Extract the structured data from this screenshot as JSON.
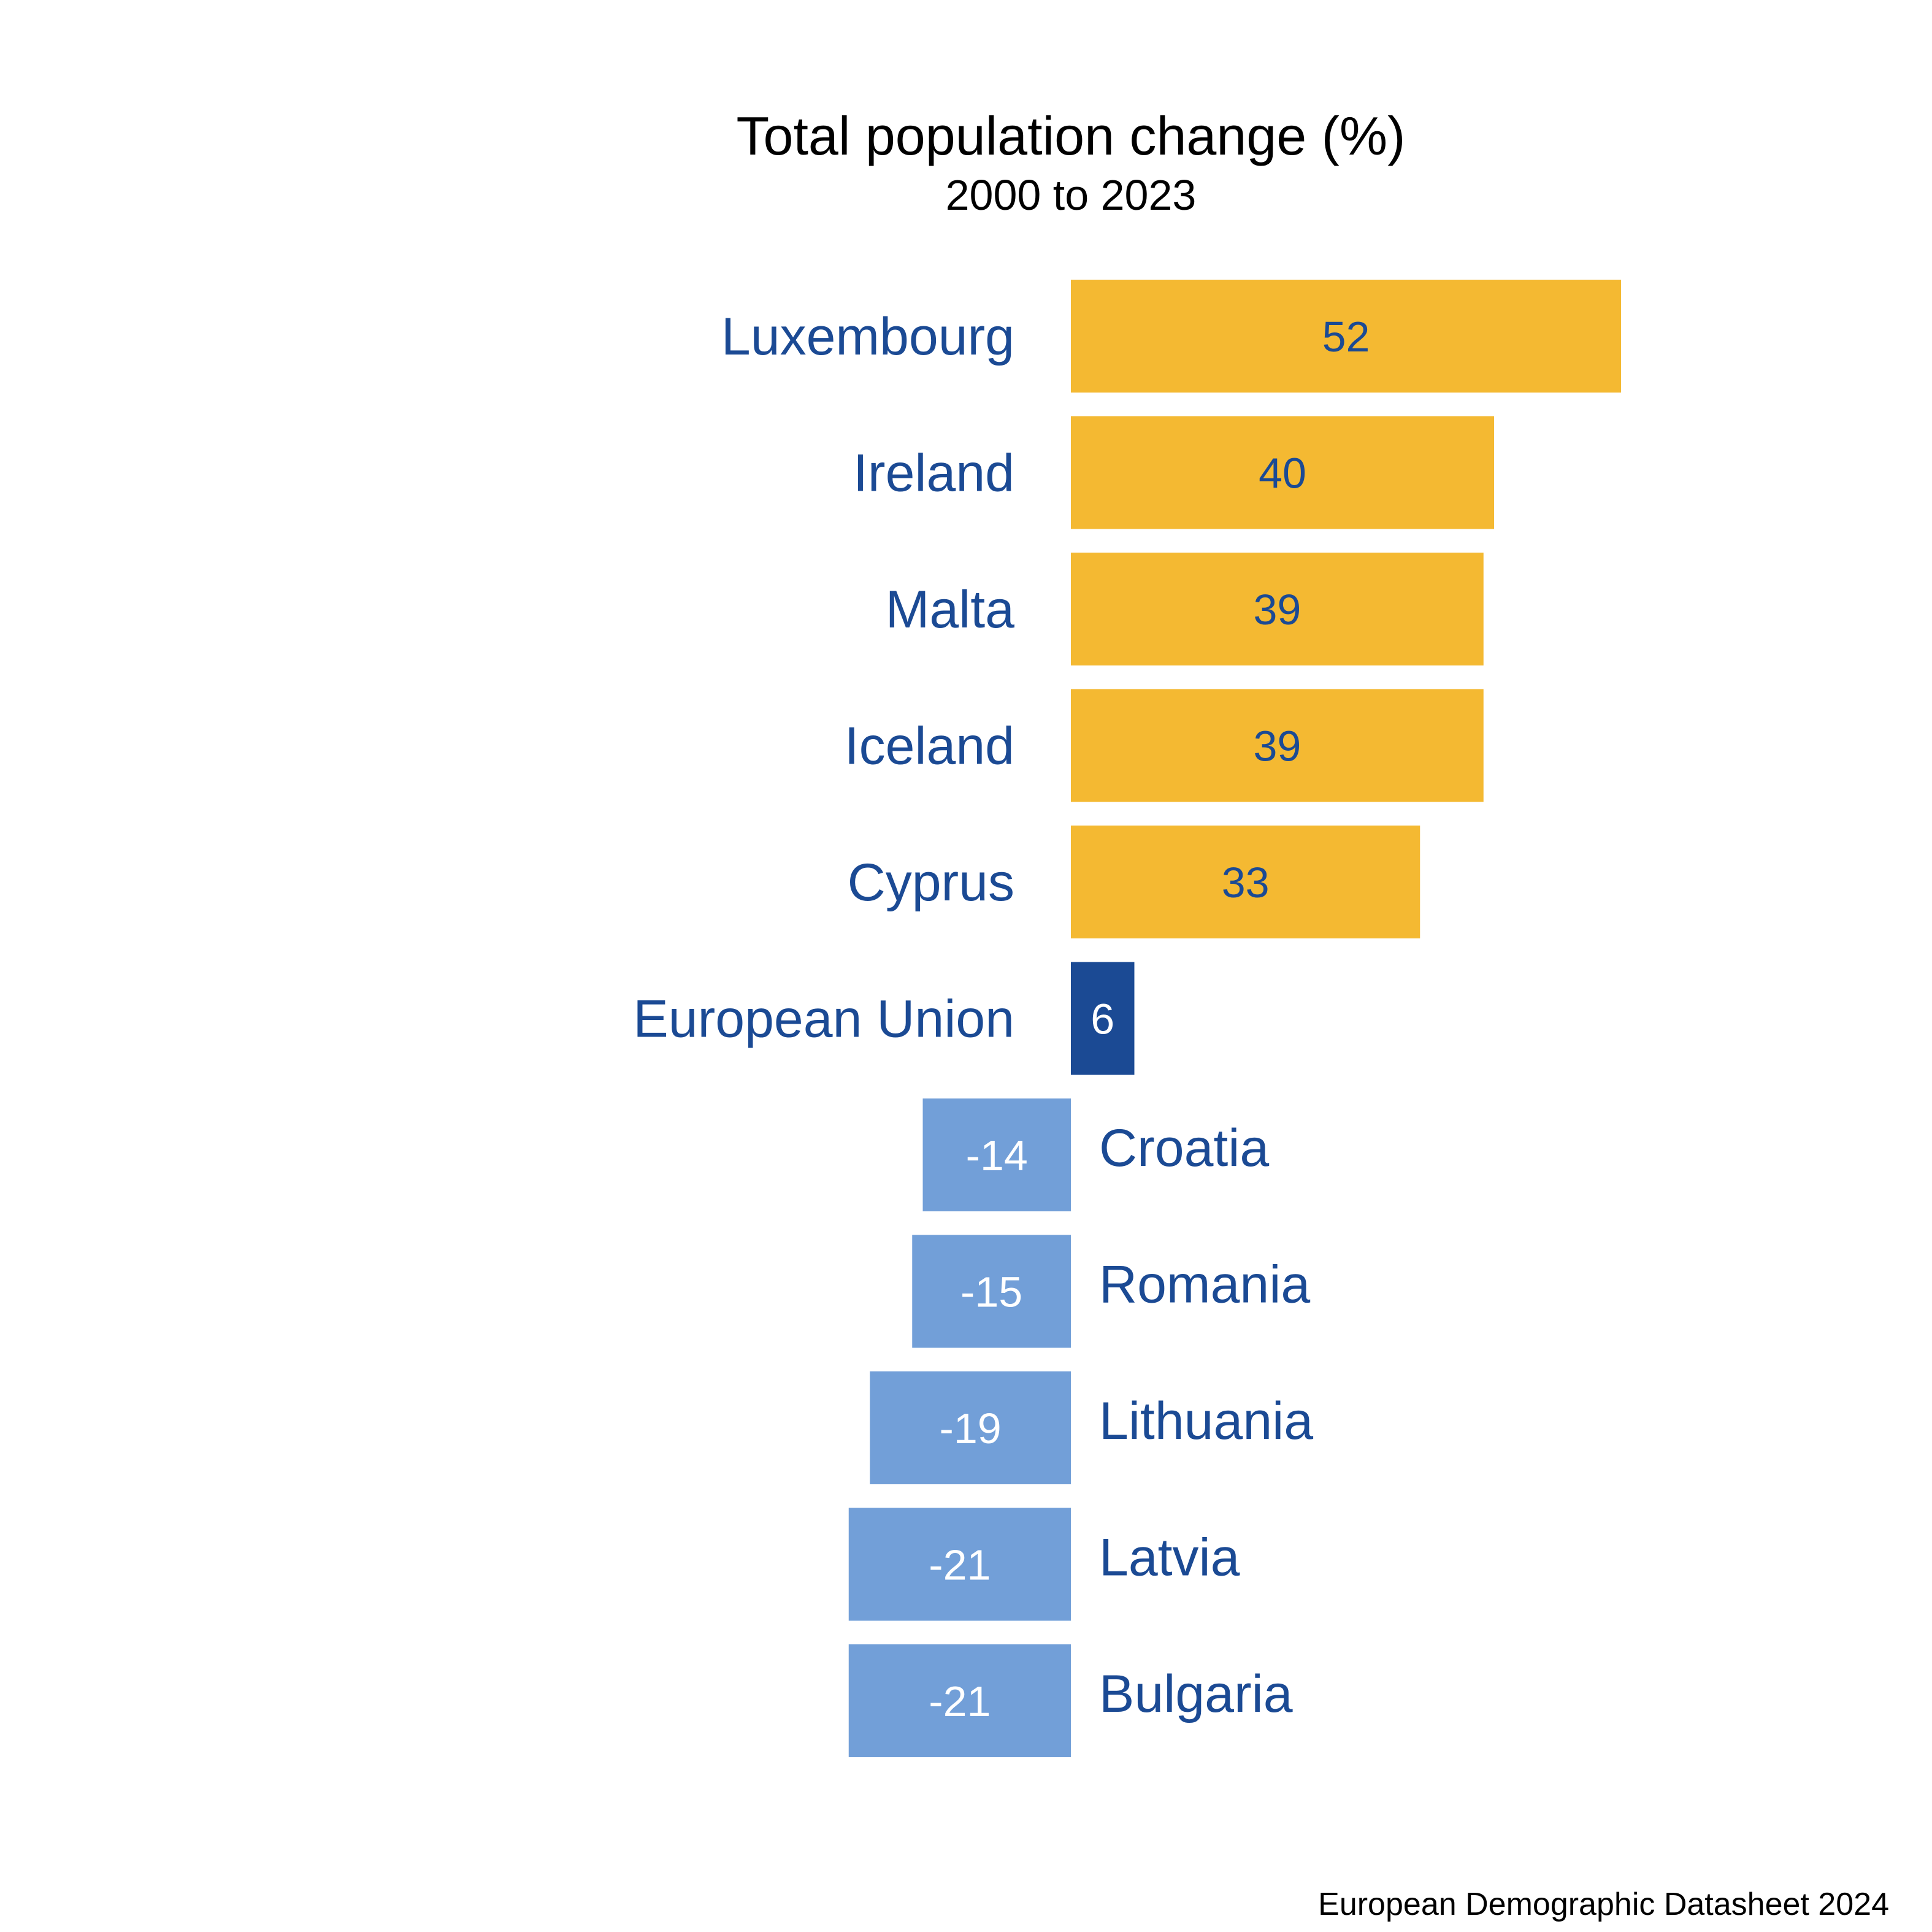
{
  "chart_data": {
    "type": "bar",
    "orientation": "horizontal",
    "title": "Total population change (%)",
    "subtitle": "2000 to 2023",
    "xlabel": "",
    "ylabel": "",
    "grid": false,
    "legend": "none",
    "categories": [
      "Luxembourg",
      "Ireland",
      "Malta",
      "Iceland",
      "Cyprus",
      "European Union",
      "Croatia",
      "Romania",
      "Lithuania",
      "Latvia",
      "Bulgaria"
    ],
    "values": [
      52,
      40,
      39,
      39,
      33,
      6,
      -14,
      -15,
      -19,
      -21,
      -21
    ],
    "value_labels": [
      "52",
      "40",
      "39",
      "39",
      "33",
      "6",
      "-14",
      "-15",
      "-19",
      "-21",
      "-21"
    ],
    "groups": [
      "top",
      "top",
      "top",
      "top",
      "top",
      "eu",
      "bottom",
      "bottom",
      "bottom",
      "bottom",
      "bottom"
    ],
    "xlim": [
      -21,
      52
    ],
    "colors": {
      "top": "#F4B932",
      "eu": "#1B4A94",
      "bottom": "#729FD8",
      "category_label": "#1B4A94",
      "value_label_on_yellow": "#1B4A94",
      "value_label_on_blue": "#FFFFFF"
    },
    "source": "European Demographic Datasheet 2024"
  }
}
